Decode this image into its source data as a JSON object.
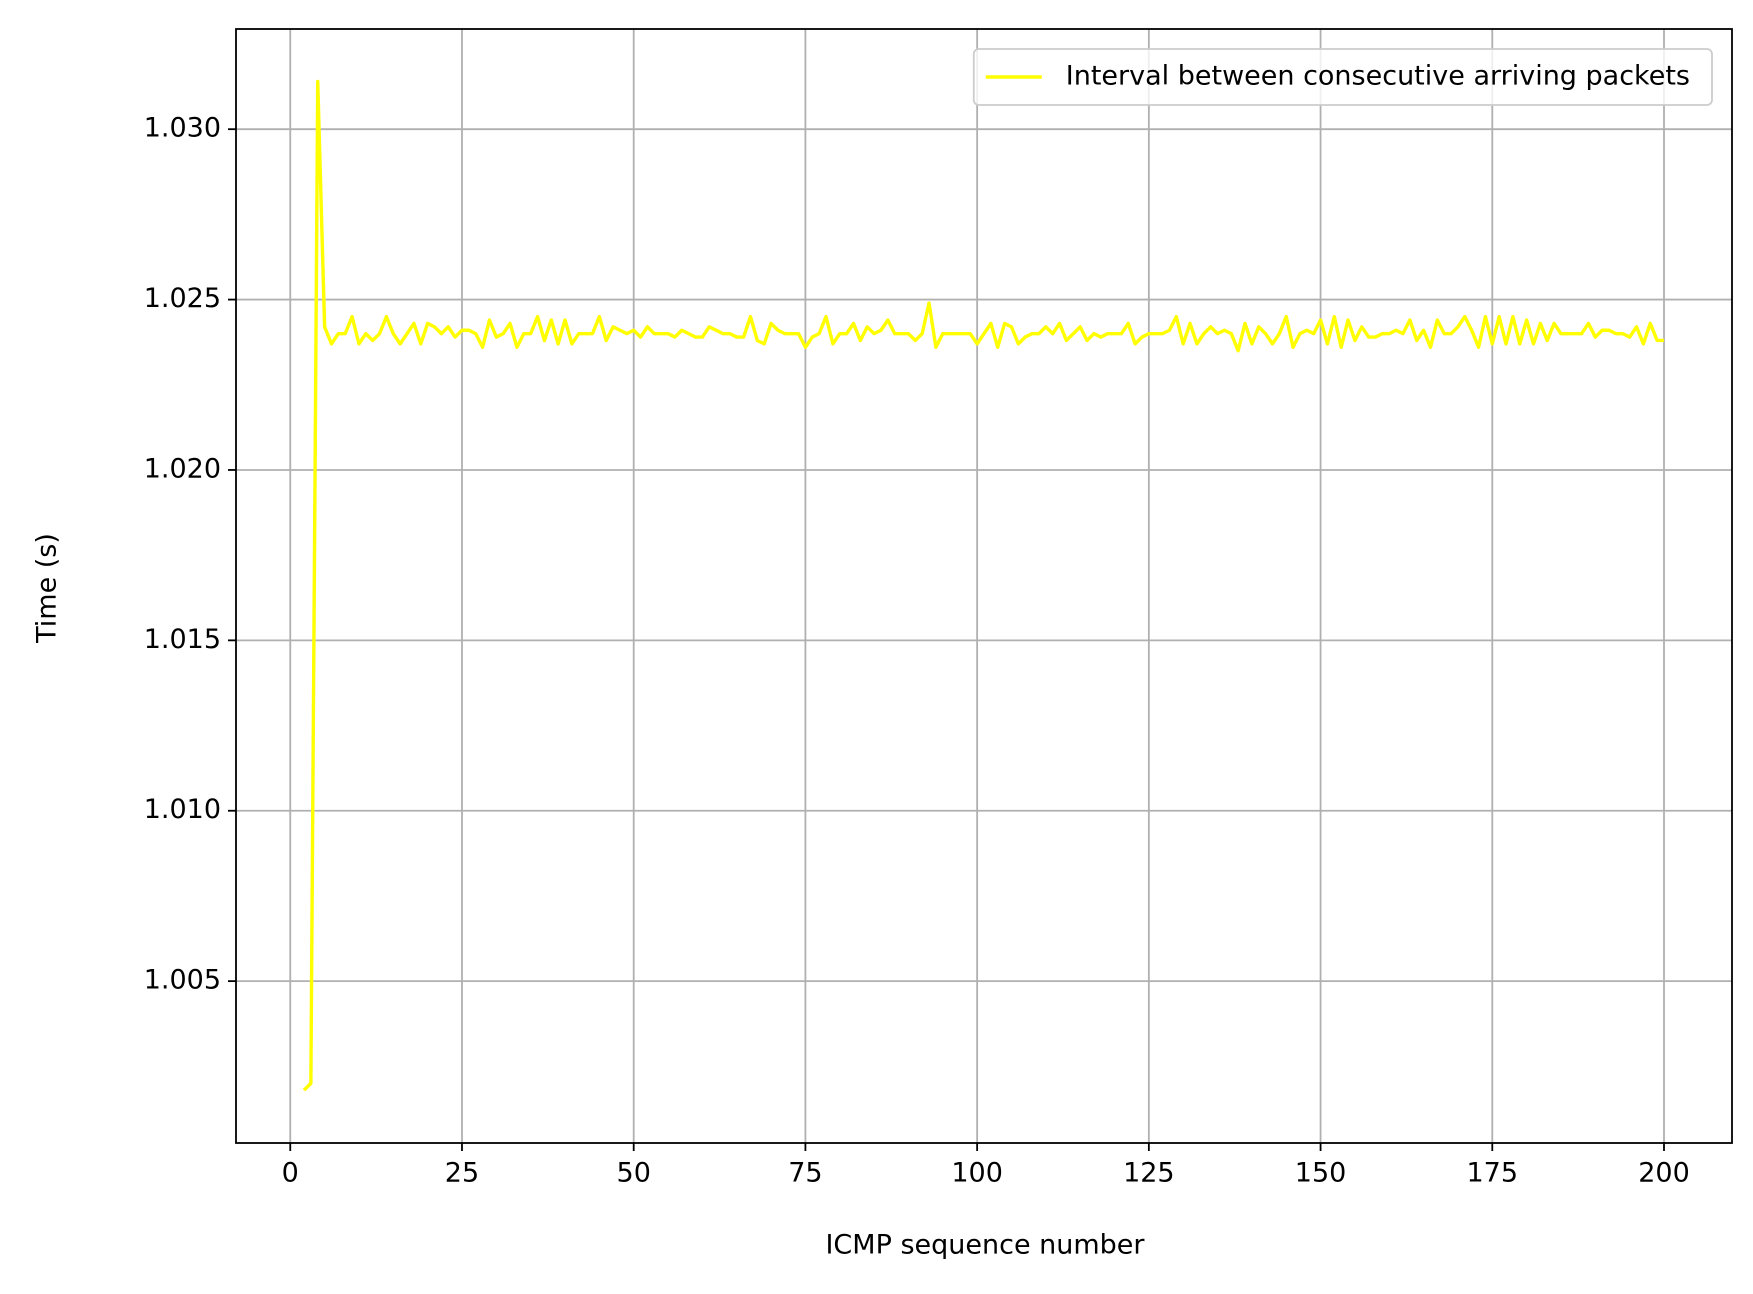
{
  "chart_data": {
    "type": "line",
    "xlabel": "ICMP sequence number",
    "ylabel": "Time (s)",
    "x": [
      2,
      3,
      4,
      5,
      6,
      7,
      8,
      9,
      10,
      11,
      12,
      13,
      14,
      15,
      16,
      17,
      18,
      19,
      20,
      21,
      22,
      23,
      24,
      25,
      26,
      27,
      28,
      29,
      30,
      31,
      32,
      33,
      34,
      35,
      36,
      37,
      38,
      39,
      40,
      41,
      42,
      43,
      44,
      45,
      46,
      47,
      48,
      49,
      50,
      51,
      52,
      53,
      54,
      55,
      56,
      57,
      58,
      59,
      60,
      61,
      62,
      63,
      64,
      65,
      66,
      67,
      68,
      69,
      70,
      71,
      72,
      73,
      74,
      75,
      76,
      77,
      78,
      79,
      80,
      81,
      82,
      83,
      84,
      85,
      86,
      87,
      88,
      89,
      90,
      91,
      92,
      93,
      94,
      95,
      96,
      97,
      98,
      99,
      100,
      101,
      102,
      103,
      104,
      105,
      106,
      107,
      108,
      109,
      110,
      111,
      112,
      113,
      114,
      115,
      116,
      117,
      118,
      119,
      120,
      121,
      122,
      123,
      124,
      125,
      126,
      127,
      128,
      129,
      130,
      131,
      132,
      133,
      134,
      135,
      136,
      137,
      138,
      139,
      140,
      141,
      142,
      143,
      144,
      145,
      146,
      147,
      148,
      149,
      150,
      151,
      152,
      153,
      154,
      155,
      156,
      157,
      158,
      159,
      160,
      161,
      162,
      163,
      164,
      165,
      166,
      167,
      168,
      169,
      170,
      171,
      172,
      173,
      174,
      175,
      176,
      177,
      178,
      179,
      180,
      181,
      182,
      183,
      184,
      185,
      186,
      187,
      188,
      189,
      190,
      191,
      192,
      193,
      194,
      195,
      196,
      197,
      198,
      199,
      200
    ],
    "series": [
      {
        "name": "Interval between consecutive arriving packets",
        "color": "#ffff00",
        "values": [
          1.0018,
          1.002,
          1.0314,
          1.0242,
          1.0237,
          1.024,
          1.024,
          1.0245,
          1.0237,
          1.024,
          1.0238,
          1.024,
          1.0245,
          1.024,
          1.0237,
          1.024,
          1.0243,
          1.0237,
          1.0243,
          1.0242,
          1.024,
          1.0242,
          1.0239,
          1.0241,
          1.0241,
          1.024,
          1.0236,
          1.0244,
          1.0239,
          1.024,
          1.0243,
          1.0236,
          1.024,
          1.024,
          1.0245,
          1.0238,
          1.0244,
          1.0237,
          1.0244,
          1.0237,
          1.024,
          1.024,
          1.024,
          1.0245,
          1.0238,
          1.0242,
          1.0241,
          1.024,
          1.0241,
          1.0239,
          1.0242,
          1.024,
          1.024,
          1.024,
          1.0239,
          1.0241,
          1.024,
          1.0239,
          1.0239,
          1.0242,
          1.0241,
          1.024,
          1.024,
          1.0239,
          1.0239,
          1.0245,
          1.0238,
          1.0237,
          1.0243,
          1.0241,
          1.024,
          1.024,
          1.024,
          1.0236,
          1.0239,
          1.024,
          1.0245,
          1.0237,
          1.024,
          1.024,
          1.0243,
          1.0238,
          1.0242,
          1.024,
          1.0241,
          1.0244,
          1.024,
          1.024,
          1.024,
          1.0238,
          1.024,
          1.0249,
          1.0236,
          1.024,
          1.024,
          1.024,
          1.024,
          1.024,
          1.0237,
          1.024,
          1.0243,
          1.0236,
          1.0243,
          1.0242,
          1.0237,
          1.0239,
          1.024,
          1.024,
          1.0242,
          1.024,
          1.0243,
          1.0238,
          1.024,
          1.0242,
          1.0238,
          1.024,
          1.0239,
          1.024,
          1.024,
          1.024,
          1.0243,
          1.0237,
          1.0239,
          1.024,
          1.024,
          1.024,
          1.0241,
          1.0245,
          1.0237,
          1.0243,
          1.0237,
          1.024,
          1.0242,
          1.024,
          1.0241,
          1.024,
          1.0235,
          1.0243,
          1.0237,
          1.0242,
          1.024,
          1.0237,
          1.024,
          1.0245,
          1.0236,
          1.024,
          1.0241,
          1.024,
          1.0244,
          1.0237,
          1.0245,
          1.0236,
          1.0244,
          1.0238,
          1.0242,
          1.0239,
          1.0239,
          1.024,
          1.024,
          1.0241,
          1.024,
          1.0244,
          1.0238,
          1.0241,
          1.0236,
          1.0244,
          1.024,
          1.024,
          1.0242,
          1.0245,
          1.0241,
          1.0236,
          1.0245,
          1.0237,
          1.0245,
          1.0237,
          1.0245,
          1.0237,
          1.0244,
          1.0237,
          1.0243,
          1.0238,
          1.0243,
          1.024,
          1.024,
          1.024,
          1.024,
          1.0243,
          1.0239,
          1.0241,
          1.0241,
          1.024,
          1.024,
          1.0239,
          1.0242,
          1.0237,
          1.0243,
          1.0238,
          1.0238
        ]
      }
    ],
    "xlim": [
      -7.9,
      209.9
    ],
    "ylim": [
      1.00025,
      1.03294
    ],
    "xticks": [
      0,
      25,
      50,
      75,
      100,
      125,
      150,
      175,
      200
    ],
    "yticks": [
      1.005,
      {
        "value": 1.01,
        "label": "1.010"
      },
      1.015,
      {
        "value": 1.02,
        "label": "1.020"
      },
      1.025,
      {
        "value": 1.03,
        "label": "1.030"
      }
    ],
    "grid": true,
    "legend": "upper right"
  }
}
